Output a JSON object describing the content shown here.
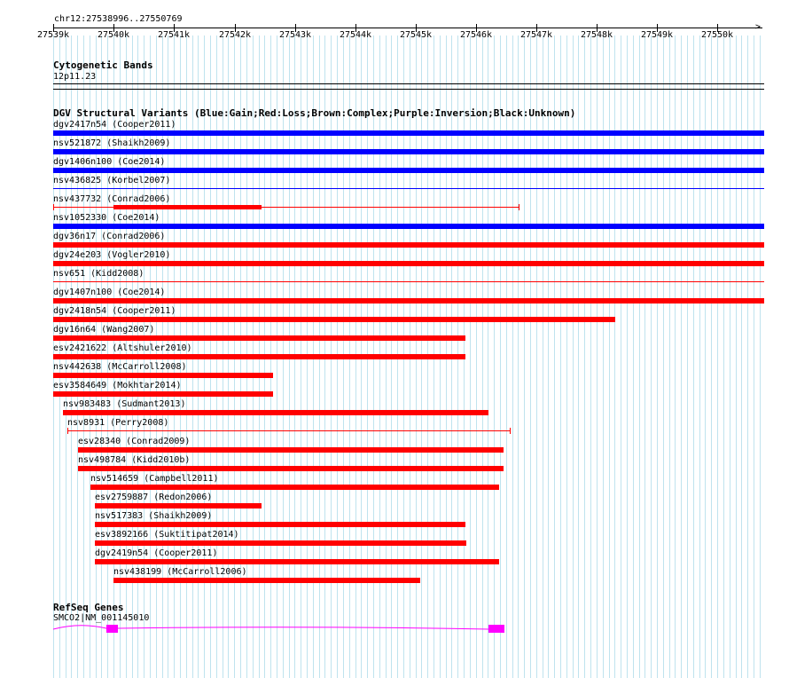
{
  "ruler": {
    "location": "chr12:27538996..27550769",
    "ticks": [
      "27539k",
      "27540k",
      "27541k",
      "27542k",
      "27543k",
      "27544k",
      "27545k",
      "27546k",
      "27547k",
      "27548k",
      "27549k",
      "27550k"
    ],
    "tick_start_bp": 27539000,
    "tick_step_bp": 1000
  },
  "view": {
    "start_bp": 27538996,
    "end_bp": 27550769
  },
  "cytoband": {
    "title": "Cytogenetic Bands",
    "band": "12p11.23"
  },
  "dgv": {
    "title": "DGV Structural Variants (Blue:Gain;Red:Loss;Brown:Complex;Purple:Inversion;Black:Unknown)",
    "legend_colors": {
      "gain": "#0000ff",
      "loss": "#ff0000",
      "complex": "#8b4513",
      "inversion": "#800080",
      "unknown": "#000000"
    },
    "features": [
      {
        "label": "dgv2417n54 (Cooper2011)",
        "type": "gain",
        "style": "bar",
        "start": 27538996,
        "end": 27550769
      },
      {
        "label": "nsv521872 (Shaikh2009)",
        "type": "gain",
        "style": "bar",
        "start": 27538996,
        "end": 27550769
      },
      {
        "label": "dgv1406n100 (Coe2014)",
        "type": "gain",
        "style": "bar",
        "start": 27538996,
        "end": 27550769
      },
      {
        "label": "nsv436825 (Korbel2007)",
        "type": "gain",
        "style": "line",
        "start": 27538996,
        "end": 27550769
      },
      {
        "label": "nsv437732 (Conrad2006)",
        "type": "loss",
        "style": "mixed",
        "start": 27538996,
        "end": 27546700,
        "thick_start": 27540000,
        "thick_end": 27542450
      },
      {
        "label": "nsv1052330 (Coe2014)",
        "type": "gain",
        "style": "bar",
        "start": 27538996,
        "end": 27550769
      },
      {
        "label": "dgv36n17 (Conrad2006)",
        "type": "loss",
        "style": "bar",
        "start": 27538996,
        "end": 27550769
      },
      {
        "label": "dgv24e203 (Vogler2010)",
        "type": "loss",
        "style": "bar",
        "start": 27538996,
        "end": 27550769
      },
      {
        "label": "nsv651 (Kidd2008)",
        "type": "loss",
        "style": "line",
        "start": 27538996,
        "end": 27550769
      },
      {
        "label": "dgv1407n100 (Coe2014)",
        "type": "loss",
        "style": "bar",
        "start": 27538996,
        "end": 27550769
      },
      {
        "label": "dgv2418n54 (Cooper2011)",
        "type": "loss",
        "style": "bar",
        "start": 27538996,
        "end": 27548300
      },
      {
        "label": "dgv16n64 (Wang2007)",
        "type": "loss",
        "style": "bar",
        "start": 27538996,
        "end": 27545830
      },
      {
        "label": "esv2421622 (Altshuler2010)",
        "type": "loss",
        "style": "bar",
        "start": 27538996,
        "end": 27545830
      },
      {
        "label": "nsv442638 (McCarroll2008)",
        "type": "loss",
        "style": "bar",
        "start": 27538996,
        "end": 27542640
      },
      {
        "label": "esv3584649 (Mokhtar2014)",
        "type": "loss",
        "style": "bar",
        "start": 27538996,
        "end": 27542640
      },
      {
        "label": "nsv983483 (Sudmant2013)",
        "type": "loss",
        "style": "bar",
        "start": 27539160,
        "end": 27546200
      },
      {
        "label": "nsv8931 (Perry2008)",
        "type": "loss",
        "style": "line",
        "start": 27539230,
        "end": 27546560
      },
      {
        "label": "esv28340 (Conrad2009)",
        "type": "loss",
        "style": "bar",
        "start": 27539400,
        "end": 27546460
      },
      {
        "label": "nsv498784 (Kidd2010b)",
        "type": "loss",
        "style": "bar",
        "start": 27539410,
        "end": 27546450
      },
      {
        "label": "nsv514659 (Campbell2011)",
        "type": "loss",
        "style": "bar",
        "start": 27539610,
        "end": 27546380
      },
      {
        "label": "esv2759887 (Redon2006)",
        "type": "loss",
        "style": "bar",
        "start": 27539690,
        "end": 27542450
      },
      {
        "label": "nsv517383 (Shaikh2009)",
        "type": "loss",
        "style": "bar",
        "start": 27539690,
        "end": 27545830
      },
      {
        "label": "esv3892166 (Suktitipat2014)",
        "type": "loss",
        "style": "bar",
        "start": 27539690,
        "end": 27545840
      },
      {
        "label": "dgv2419n54 (Cooper2011)",
        "type": "loss",
        "style": "bar",
        "start": 27539690,
        "end": 27546380
      },
      {
        "label": "nsv438199 (McCarroll2006)",
        "type": "loss",
        "style": "bar",
        "start": 27539990,
        "end": 27545070
      }
    ]
  },
  "refseq": {
    "title": "RefSeq Genes",
    "gene_label": "SMCO2|NM_001145010",
    "color": "#ff00ff",
    "start": 27538996,
    "end": 27546470,
    "exons": [
      {
        "start": 27539880,
        "end": 27540070
      },
      {
        "start": 27546200,
        "end": 27546470
      }
    ]
  }
}
